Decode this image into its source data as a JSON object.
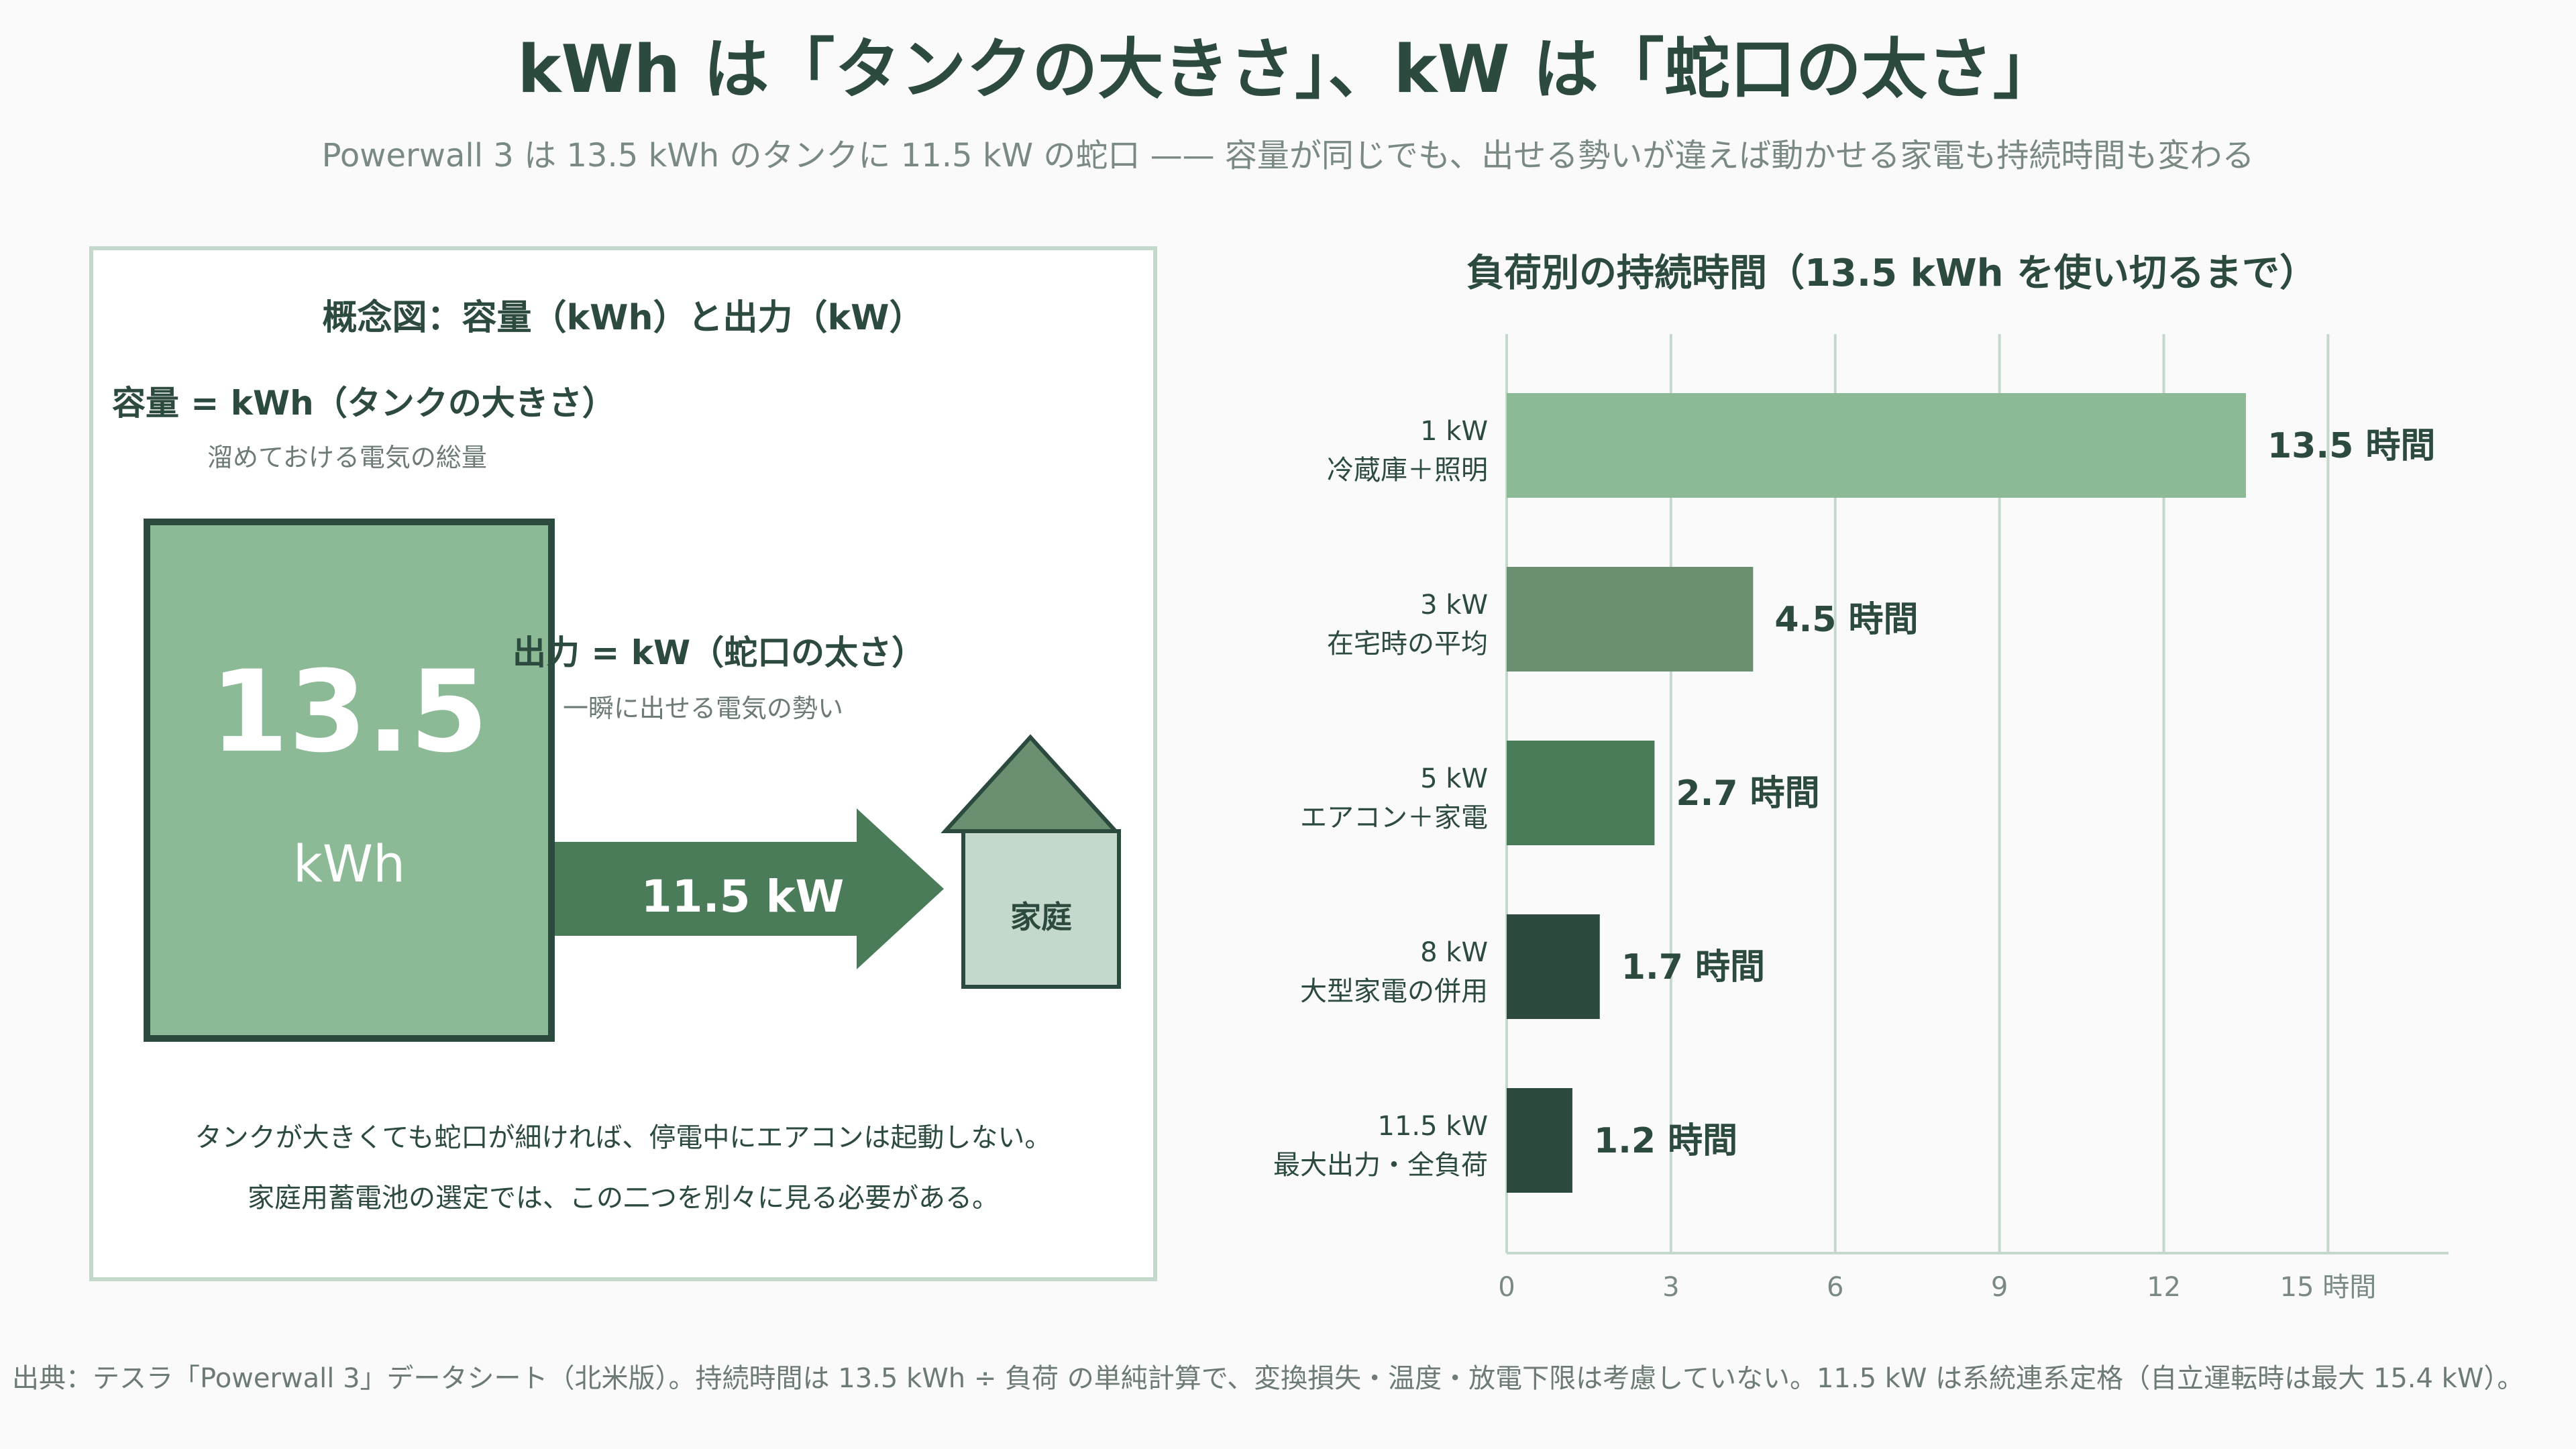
{
  "header": {
    "title": "kWh は「タンクの大きさ」、kW は「蛇口の太さ」",
    "subtitle": "Powerwall 3 は 13.5 kWh のタンクに 11.5 kW の蛇口 —— 容量が同じでも、出せる勢いが違えば動かせる家電も持続時間も変わる"
  },
  "concept": {
    "title": "概念図：容量（kWh）と出力（kW）",
    "capacity_title": "容量 = kWh（タンクの大きさ）",
    "capacity_desc": "溜めておける電気の総量",
    "tank_value": "13.5",
    "tank_unit": "kWh",
    "output_title": "出力 = kW（蛇口の太さ）",
    "output_desc": "一瞬に出せる電気の勢い",
    "arrow_label": "11.5 kW",
    "house_label": "家庭",
    "note1": "タンクが大きくても蛇口が細ければ、停電中にエアコンは起動しない。",
    "note2": "家庭用蓄電池の選定では、この二つを別々に見る必要がある。"
  },
  "colors": {
    "tank": "#8cb996",
    "dark": "#2d4a3e",
    "arrow": "#4a7c59",
    "roof": "#6b8f71",
    "house_body": "#c5d8cc",
    "panel_border": "#c5d8cc",
    "grid": "#c5d8cc"
  },
  "chart_data": {
    "type": "bar",
    "orientation": "horizontal",
    "title": "負荷別の持続時間（13.5 kWh を使い切るまで）",
    "categories": [
      {
        "load": "1 kW",
        "desc": "冷蔵庫＋照明"
      },
      {
        "load": "3 kW",
        "desc": "在宅時の平均"
      },
      {
        "load": "5 kW",
        "desc": "エアコン＋家電"
      },
      {
        "load": "8 kW",
        "desc": "大型家電の併用"
      },
      {
        "load": "11.5 kW",
        "desc": "最大出力・全負荷"
      }
    ],
    "values": [
      13.5,
      4.5,
      2.7,
      1.7,
      1.2
    ],
    "value_labels": [
      "13.5 時間",
      "4.5 時間",
      "2.7 時間",
      "1.7 時間",
      "1.2 時間"
    ],
    "bar_colors": [
      "#8cb996",
      "#6b8f71",
      "#4a7c59",
      "#2d4a3e",
      "#2d4a3e"
    ],
    "xlim": [
      0,
      17.2
    ],
    "xticks": [
      "0",
      "3",
      "6",
      "9",
      "12",
      "15 時間"
    ],
    "xtick_values": [
      0,
      3,
      6,
      9,
      12,
      15
    ],
    "grid": true
  },
  "footer": {
    "source": "出典：テスラ「Powerwall 3」データシート（北米版）。持続時間は 13.5 kWh ÷ 負荷 の単純計算で、変換損失・温度・放電下限は考慮していない。11.5 kW は系統連系定格（自立運転時は最大 15.4 kW）。"
  }
}
